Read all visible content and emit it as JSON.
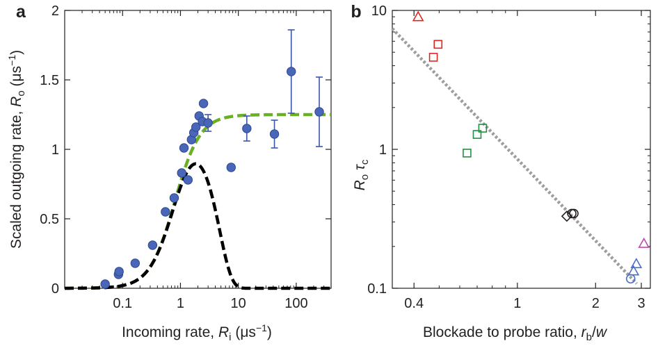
{
  "chart_data": [
    {
      "panel": "a",
      "type": "scatter",
      "xscale": "log",
      "xlim": [
        0.01,
        400
      ],
      "ylim": [
        0,
        2
      ],
      "xticks": [
        {
          "v": 0.1,
          "label": "0.1"
        },
        {
          "v": 1,
          "label": "1"
        },
        {
          "v": 10,
          "label": "10"
        },
        {
          "v": 100,
          "label": "100"
        }
      ],
      "yticks": [
        {
          "v": 0,
          "label": "0"
        },
        {
          "v": 0.5,
          "label": "0.5"
        },
        {
          "v": 1,
          "label": "1"
        },
        {
          "v": 1.5,
          "label": "1.5"
        },
        {
          "v": 2,
          "label": "2"
        }
      ],
      "xlabel": {
        "main": "Incoming rate, ",
        "var": "R",
        "sub": "i",
        "unit": " (μs",
        "exp": "−1",
        "close": ")"
      },
      "ylabel": {
        "main": "Scaled outgoing rate, ",
        "var": "R",
        "sub": "o",
        "unit": " (μs",
        "exp": "−1",
        "close": ")"
      },
      "points": [
        {
          "x": 0.05,
          "y": 0.03
        },
        {
          "x": 0.085,
          "y": 0.1
        },
        {
          "x": 0.087,
          "y": 0.12
        },
        {
          "x": 0.165,
          "y": 0.18
        },
        {
          "x": 0.33,
          "y": 0.31
        },
        {
          "x": 0.55,
          "y": 0.55
        },
        {
          "x": 0.78,
          "y": 0.65
        },
        {
          "x": 1.05,
          "y": 0.83
        },
        {
          "x": 1.35,
          "y": 0.78
        },
        {
          "x": 1.15,
          "y": 1.01
        },
        {
          "x": 1.55,
          "y": 1.07
        },
        {
          "x": 1.7,
          "y": 1.12
        },
        {
          "x": 1.85,
          "y": 1.16
        },
        {
          "x": 2.1,
          "y": 1.24
        },
        {
          "x": 2.5,
          "y": 1.33
        },
        {
          "x": 2.4,
          "y": 1.2
        },
        {
          "x": 3.0,
          "y": 1.19,
          "err": 0.06
        },
        {
          "x": 7.5,
          "y": 0.87,
          "err": 0.02
        },
        {
          "x": 14,
          "y": 1.15,
          "err": 0.09
        },
        {
          "x": 42,
          "y": 1.11,
          "err": 0.1
        },
        {
          "x": 82,
          "y": 1.56,
          "err": 0.3
        },
        {
          "x": 250,
          "y": 1.27,
          "err": 0.25
        }
      ],
      "curves": [
        {
          "style": "dashed",
          "color": "#6ab023",
          "plateau": 1.25,
          "half_rate": 0.8,
          "order": 2
        },
        {
          "style": "dashed",
          "color": "#000000",
          "plateau": 1.25,
          "half_rate": 0.8,
          "order": 2,
          "cutoff": 4.6
        }
      ],
      "marker_color": "#4a66b8"
    },
    {
      "panel": "b",
      "type": "scatter",
      "xscale": "log",
      "yscale": "log",
      "xlim": [
        0.33,
        3.25
      ],
      "ylim": [
        0.1,
        10
      ],
      "xticks": [
        {
          "v": 0.4,
          "label": "0.4"
        },
        {
          "v": 1,
          "label": "1"
        },
        {
          "v": 2,
          "label": "2"
        },
        {
          "v": 3,
          "label": "3"
        }
      ],
      "yticks": [
        {
          "v": 0.1,
          "label": "0.1"
        },
        {
          "v": 1,
          "label": "1"
        },
        {
          "v": 10,
          "label": "10"
        }
      ],
      "xlabel": {
        "main": "Blockade to probe ratio, ",
        "var": "r",
        "sub": "b",
        "tail": "/",
        "var2": "w"
      },
      "ylabel": {
        "var": "R",
        "sub": "o",
        "var2": "τ",
        "sub2": "c"
      },
      "points": [
        {
          "x": 0.415,
          "y": 9.0,
          "marker": "triangle",
          "color": "#e0241b"
        },
        {
          "x": 0.495,
          "y": 5.7,
          "marker": "square",
          "color": "#e0241b"
        },
        {
          "x": 0.475,
          "y": 4.6,
          "marker": "square",
          "color": "#e0241b"
        },
        {
          "x": 0.64,
          "y": 0.94,
          "marker": "square",
          "color": "#1f9142"
        },
        {
          "x": 0.7,
          "y": 1.28,
          "marker": "square",
          "color": "#1f9142"
        },
        {
          "x": 0.735,
          "y": 1.42,
          "marker": "square",
          "color": "#1f9142"
        },
        {
          "x": 1.55,
          "y": 0.33,
          "marker": "diamond",
          "color": "#231f20"
        },
        {
          "x": 1.62,
          "y": 0.345,
          "marker": "circle",
          "color": "#231f20"
        },
        {
          "x": 1.65,
          "y": 0.345,
          "marker": "circle",
          "color": "#231f20"
        },
        {
          "x": 3.07,
          "y": 0.21,
          "marker": "triangle",
          "color": "#c04ab0"
        },
        {
          "x": 2.87,
          "y": 0.15,
          "marker": "triangle",
          "color": "#4a6fc8"
        },
        {
          "x": 2.8,
          "y": 0.133,
          "marker": "triangle",
          "color": "#4a6fc8"
        },
        {
          "x": 2.73,
          "y": 0.117,
          "marker": "circle",
          "color": "#4a6fc8"
        }
      ],
      "fit_line": {
        "x1": 0.33,
        "y1": 7.4,
        "x2": 2.88,
        "y2": 0.108,
        "color": "#9d9d9d",
        "style": "dotted"
      }
    }
  ]
}
